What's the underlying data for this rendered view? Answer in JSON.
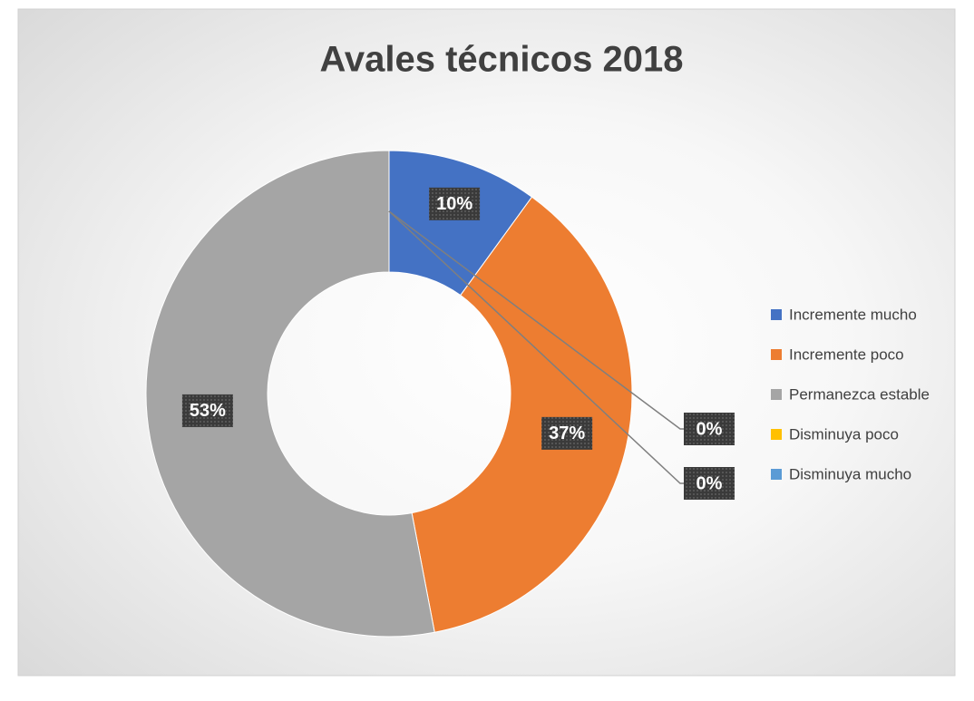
{
  "chart_data": {
    "type": "donut",
    "title": "Avales técnicos 2018",
    "categories": [
      "Incremente mucho",
      "Incremente poco",
      "Permanezca estable",
      "Disminuya poco",
      "Disminuya mucho"
    ],
    "values": [
      10,
      37,
      53,
      0,
      0
    ],
    "value_labels": [
      "10%",
      "37%",
      "53%",
      "0%",
      "0%"
    ],
    "colors": [
      "#4472c4",
      "#ed7d31",
      "#a5a5a5",
      "#ffc000",
      "#5b9bd5"
    ],
    "legend": "right"
  }
}
